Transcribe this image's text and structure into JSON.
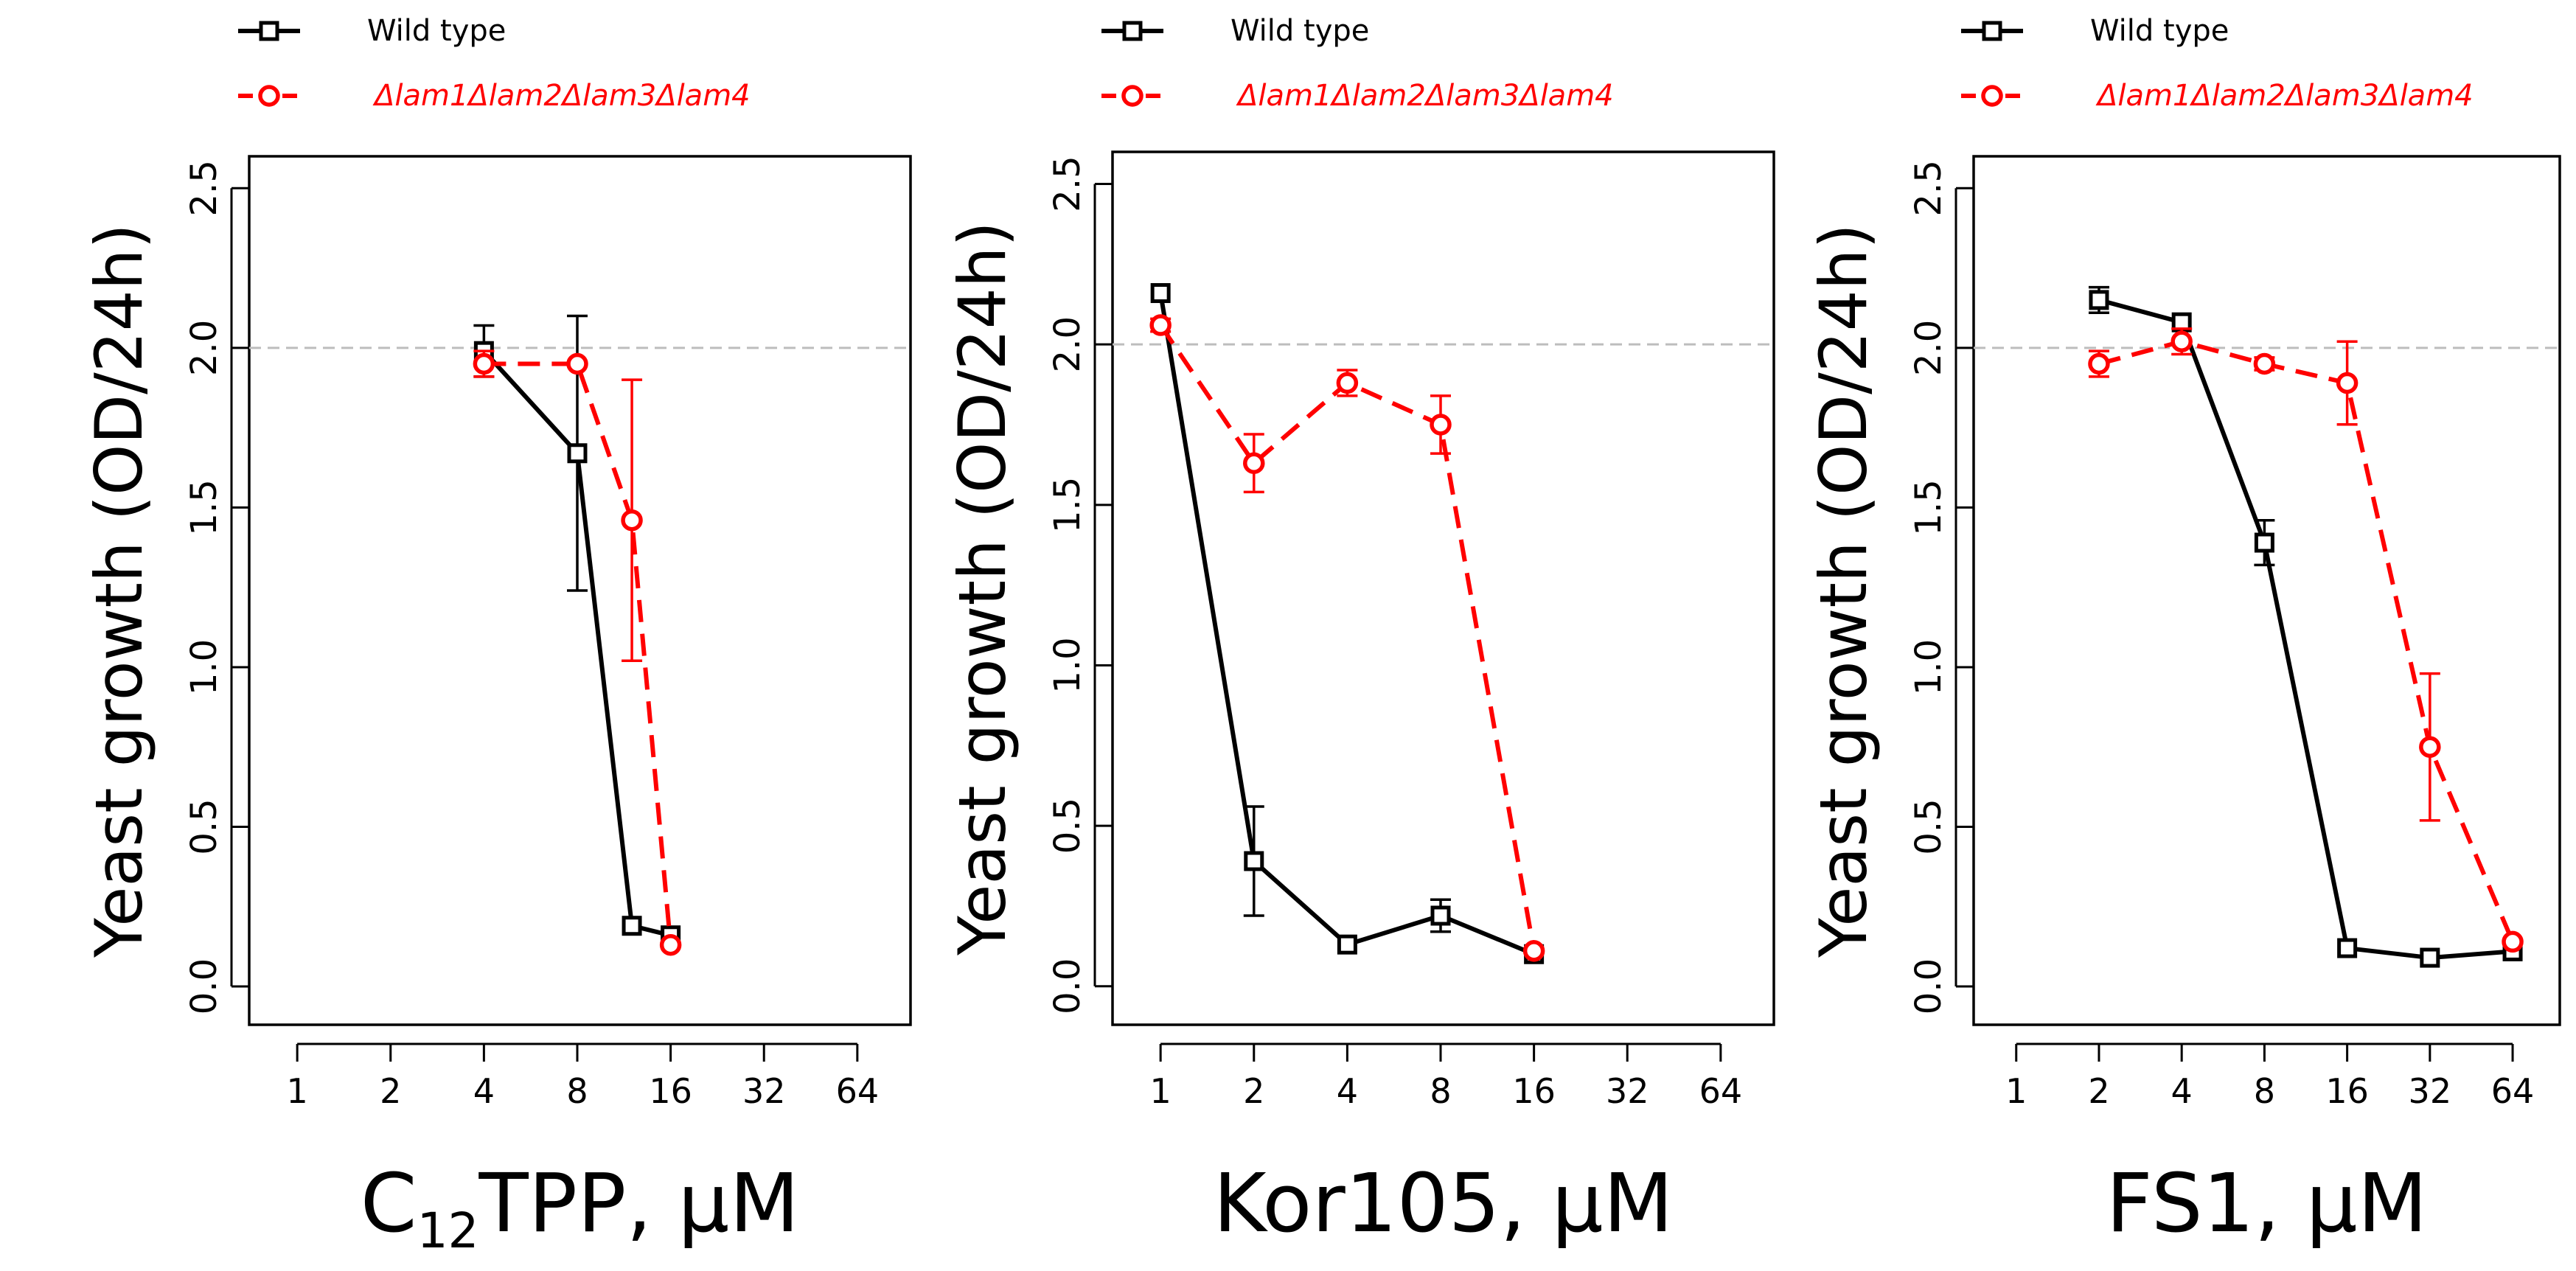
{
  "colors": {
    "wild_type": "#000000",
    "mutant": "#ff0000",
    "reference_line": "#bdbdbd",
    "frame": "#000000"
  },
  "legend": {
    "wild_type_label": "Wild type",
    "mutant_label": "Δlam1Δlam2Δlam3Δlam4",
    "wild_type_icon": "open-square-solid-line-icon",
    "mutant_icon": "open-circle-dashed-line-icon"
  },
  "chart_data": [
    {
      "type": "line",
      "panel": "C12TPP",
      "xlabel_main": "C",
      "xlabel_sub": "12",
      "xlabel_rest": "TPP, μM",
      "ylabel": "Yeast growth (OD/24h)",
      "x_scale": "log2",
      "x_ticks": [
        1,
        2,
        4,
        8,
        16,
        32,
        64
      ],
      "x_tick_labels": [
        "1",
        "2",
        "4",
        "8",
        "16",
        "32",
        "64"
      ],
      "y_ticks": [
        0.0,
        0.5,
        1.0,
        1.5,
        2.0,
        2.5
      ],
      "y_tick_labels": [
        "0.0",
        "0.5",
        "1.0",
        "1.5",
        "2.0",
        "2.5"
      ],
      "xlim": [
        0.7,
        95
      ],
      "ylim": [
        -0.12,
        2.6
      ],
      "reference_line_y": 2.0,
      "series": [
        {
          "name": "Wild type",
          "x": [
            4,
            8,
            12,
            16
          ],
          "y": [
            1.99,
            1.67,
            0.19,
            0.16
          ],
          "err": [
            0.08,
            0.43,
            0.0,
            0.0
          ]
        },
        {
          "name": "Δlam1Δlam2Δlam3Δlam4",
          "x": [
            4,
            8,
            12,
            16
          ],
          "y": [
            1.95,
            1.95,
            1.46,
            0.13
          ],
          "err": [
            0.04,
            0.0,
            0.44,
            0.0
          ]
        }
      ]
    },
    {
      "type": "line",
      "panel": "Kor105",
      "xlabel_main": "Kor105, μM",
      "xlabel_sub": "",
      "xlabel_rest": "",
      "ylabel": "Yeast growth (OD/24h)",
      "x_scale": "log2",
      "x_ticks": [
        1,
        2,
        4,
        8,
        16,
        32,
        64
      ],
      "x_tick_labels": [
        "1",
        "2",
        "4",
        "8",
        "16",
        "32",
        "64"
      ],
      "y_ticks": [
        0.0,
        0.5,
        1.0,
        1.5,
        2.0,
        2.5
      ],
      "y_tick_labels": [
        "0.0",
        "0.5",
        "1.0",
        "1.5",
        "2.0",
        "2.5"
      ],
      "xlim": [
        0.7,
        95
      ],
      "ylim": [
        -0.12,
        2.6
      ],
      "reference_line_y": 2.0,
      "series": [
        {
          "name": "Wild type",
          "x": [
            1,
            2,
            4,
            8,
            16
          ],
          "y": [
            2.16,
            0.39,
            0.13,
            0.22,
            0.1
          ],
          "err": [
            0.0,
            0.17,
            0.0,
            0.05,
            0.0
          ]
        },
        {
          "name": "Δlam1Δlam2Δlam3Δlam4",
          "x": [
            1,
            2,
            4,
            8,
            16
          ],
          "y": [
            2.06,
            1.63,
            1.88,
            1.75,
            0.11
          ],
          "err": [
            0.02,
            0.09,
            0.04,
            0.09,
            0.0
          ]
        }
      ]
    },
    {
      "type": "line",
      "panel": "FS1",
      "xlabel_main": "FS1, μM",
      "xlabel_sub": "",
      "xlabel_rest": "",
      "ylabel": "Yeast growth (OD/24h)",
      "x_scale": "log2",
      "x_ticks": [
        1,
        2,
        4,
        8,
        16,
        32,
        64
      ],
      "x_tick_labels": [
        "1",
        "2",
        "4",
        "8",
        "16",
        "32",
        "64"
      ],
      "y_ticks": [
        0.0,
        0.5,
        1.0,
        1.5,
        2.0,
        2.5
      ],
      "y_tick_labels": [
        "0.0",
        "0.5",
        "1.0",
        "1.5",
        "2.0",
        "2.5"
      ],
      "xlim": [
        0.7,
        95
      ],
      "ylim": [
        -0.12,
        2.6
      ],
      "reference_line_y": 2.0,
      "series": [
        {
          "name": "Wild type",
          "x": [
            2,
            4,
            8,
            16,
            32,
            64
          ],
          "y": [
            2.15,
            2.08,
            1.39,
            0.12,
            0.09,
            0.11
          ],
          "err": [
            0.04,
            0.0,
            0.07,
            0.0,
            0.0,
            0.0
          ]
        },
        {
          "name": "Δlam1Δlam2Δlam3Δlam4",
          "x": [
            2,
            4,
            8,
            16,
            32,
            64
          ],
          "y": [
            1.95,
            2.02,
            1.95,
            1.89,
            0.75,
            0.14
          ],
          "err": [
            0.04,
            0.04,
            0.02,
            0.13,
            0.23,
            0.0
          ]
        }
      ]
    }
  ]
}
